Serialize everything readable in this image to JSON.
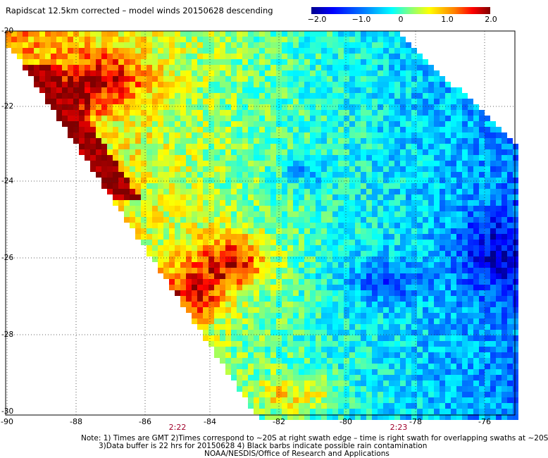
{
  "title": "Rapidscat 12.5km corrected – model winds 20150628 descending",
  "colorbar": {
    "ticks": [
      {
        "label": "−2.0",
        "value": -2.0
      },
      {
        "label": "−1.0",
        "value": -1.0
      },
      {
        "label": "0",
        "value": 0
      },
      {
        "label": "1.0",
        "value": 1.0
      },
      {
        "label": "2.0",
        "value": 2.0
      }
    ],
    "colors": [
      "#00008f",
      "#0000ff",
      "#0080ff",
      "#00ffff",
      "#80ff80",
      "#ffff00",
      "#ff8000",
      "#ff0000",
      "#800000"
    ]
  },
  "map": {
    "lat_ticks": [
      "-20",
      "-22",
      "-24",
      "-26",
      "-28",
      "-30"
    ],
    "lon_ticks": [
      "-90",
      "-88",
      "-86",
      "-84",
      "-82",
      "-80",
      "-78",
      "-76"
    ],
    "lat_range": [
      -30,
      -20
    ],
    "lon_range": [
      -90,
      -75.5
    ],
    "swath_times": [
      "2:22",
      "2:23"
    ]
  },
  "notes": {
    "line1": "Note: 1) Times are GMT 2)Times correspond to ~20S at right swath edge – time is right swath for overlapping swaths at ~20S",
    "line2": "3)Data buffer is 22 hrs for 20150628 4) Black barbs indicate possible rain contamination",
    "line3": "NOAA/NESDIS/Office of Research and Applications"
  }
}
